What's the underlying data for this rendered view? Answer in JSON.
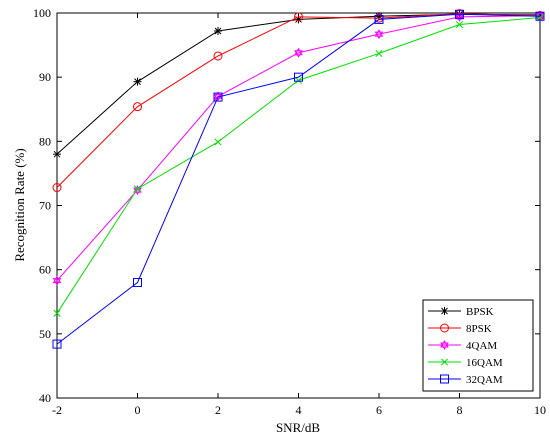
{
  "chart_data": {
    "type": "line",
    "title": "",
    "xlabel": "SNR/dB",
    "ylabel": "Recognition Rate (%)",
    "x": [
      -2,
      0,
      2,
      4,
      6,
      8,
      10
    ],
    "xlim": [
      -2,
      10
    ],
    "ylim": [
      40,
      100
    ],
    "xticks": [
      -2,
      0,
      2,
      4,
      6,
      8,
      10
    ],
    "yticks": [
      40,
      50,
      60,
      70,
      80,
      90,
      100
    ],
    "grid": false,
    "legend_position": "bottom-right",
    "series": [
      {
        "name": "BPSK",
        "color": "#000000",
        "marker": "asterisk",
        "values": [
          78.0,
          89.3,
          97.2,
          99.0,
          99.5,
          99.8,
          99.7
        ]
      },
      {
        "name": "8PSK",
        "color": "#ff0000",
        "marker": "circle",
        "values": [
          72.8,
          85.4,
          93.3,
          99.4,
          99.2,
          99.9,
          99.6
        ]
      },
      {
        "name": "4QAM",
        "color": "#ff00ff",
        "marker": "hexagram",
        "values": [
          58.3,
          72.4,
          87.0,
          93.8,
          96.7,
          99.4,
          99.6
        ]
      },
      {
        "name": "16QAM",
        "color": "#00e000",
        "marker": "x",
        "values": [
          53.2,
          72.6,
          79.9,
          89.5,
          93.7,
          98.2,
          99.3
        ]
      },
      {
        "name": "32QAM",
        "color": "#0000ff",
        "marker": "square",
        "values": [
          48.4,
          58.0,
          86.9,
          90.0,
          99.0,
          99.8,
          99.5
        ]
      }
    ]
  }
}
